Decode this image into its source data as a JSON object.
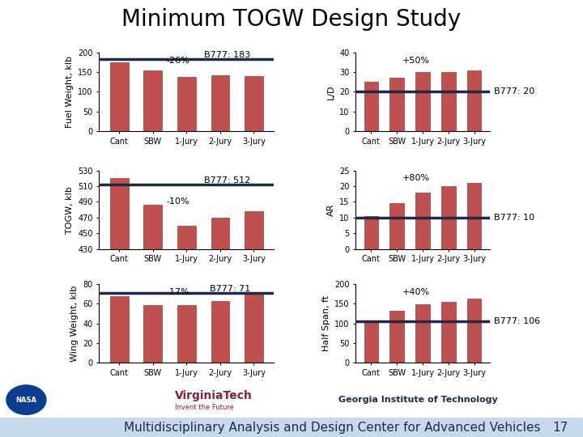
{
  "title": "Minimum TOGW Design Study",
  "footer": "Multidisciplinary Analysis and Design Center for Advanced Vehicles",
  "page": "17",
  "logos": {
    "nasa": "NASA",
    "vt": "VirginiaTech",
    "vt_tagline": "Invent the Future",
    "gt": "Georgia Institute of Technology"
  },
  "chart_data": [
    {
      "type": "bar",
      "y_label": "Fuel Weight, klb",
      "categories": [
        "Cant",
        "SBW",
        "1-Jury",
        "2-Jury",
        "3-Jury"
      ],
      "values": [
        175,
        155,
        137,
        142,
        140
      ],
      "color": "#c0504d",
      "ylim": [
        0,
        200
      ],
      "yticks": [
        0,
        50,
        100,
        150,
        200
      ],
      "grid": false,
      "reference": {
        "label": "B777: 183",
        "value": 183,
        "color": "#1f2a44"
      },
      "annotation": "-26%"
    },
    {
      "type": "bar",
      "y_label": "L/D",
      "categories": [
        "Cant",
        "SBW",
        "1-Jury",
        "2-Jury",
        "3-Jury"
      ],
      "values": [
        25,
        27,
        30,
        30,
        31
      ],
      "color": "#c0504d",
      "ylim": [
        0,
        40
      ],
      "yticks": [
        0,
        10,
        20,
        30,
        40
      ],
      "grid": false,
      "reference": {
        "label": "B777: 20",
        "value": 20,
        "color": "#1f2a44"
      },
      "annotation": "+50%"
    },
    {
      "type": "bar",
      "y_label": "TOGW, klb",
      "categories": [
        "Cant",
        "SBW",
        "1-Jury",
        "2-Jury",
        "3-Jury"
      ],
      "values": [
        520,
        486,
        460,
        470,
        478
      ],
      "color": "#c0504d",
      "ylim": [
        430,
        530
      ],
      "yticks": [
        430,
        450,
        470,
        490,
        510,
        530
      ],
      "grid": false,
      "reference": {
        "label": "B777: 512",
        "value": 512,
        "color": "#1f2a44"
      },
      "annotation": "-10%"
    },
    {
      "type": "bar",
      "y_label": "AR",
      "categories": [
        "Cant",
        "SBW",
        "1-Jury",
        "2-Jury",
        "3-Jury"
      ],
      "values": [
        10.5,
        14.5,
        18,
        20,
        21
      ],
      "color": "#c0504d",
      "ylim": [
        0,
        25
      ],
      "yticks": [
        0,
        5,
        10,
        15,
        20,
        25
      ],
      "grid": false,
      "reference": {
        "label": "B777: 10",
        "value": 10,
        "color": "#1f2a44"
      },
      "annotation": "+80%"
    },
    {
      "type": "bar",
      "y_label": "Wing Weight, klb",
      "categories": [
        "Cant",
        "SBW",
        "1-Jury",
        "2-Jury",
        "3-Jury"
      ],
      "values": [
        68,
        59,
        59,
        63,
        70
      ],
      "color": "#c0504d",
      "ylim": [
        0,
        80
      ],
      "yticks": [
        0,
        20,
        40,
        60,
        80
      ],
      "grid": false,
      "reference": {
        "label": "B777: 71",
        "value": 71,
        "color": "#1f2a44"
      },
      "annotation": "-17%"
    },
    {
      "type": "bar",
      "y_label": "Half Span, ft",
      "categories": [
        "Cant",
        "SBW",
        "1-Jury",
        "2-Jury",
        "3-Jury"
      ],
      "values": [
        108,
        133,
        148,
        155,
        163
      ],
      "color": "#c0504d",
      "ylim": [
        0,
        200
      ],
      "yticks": [
        0,
        50,
        100,
        150,
        200
      ],
      "grid": false,
      "reference": {
        "label": "B777: 106",
        "value": 106,
        "color": "#1f2a44"
      },
      "annotation": "+40%"
    }
  ]
}
